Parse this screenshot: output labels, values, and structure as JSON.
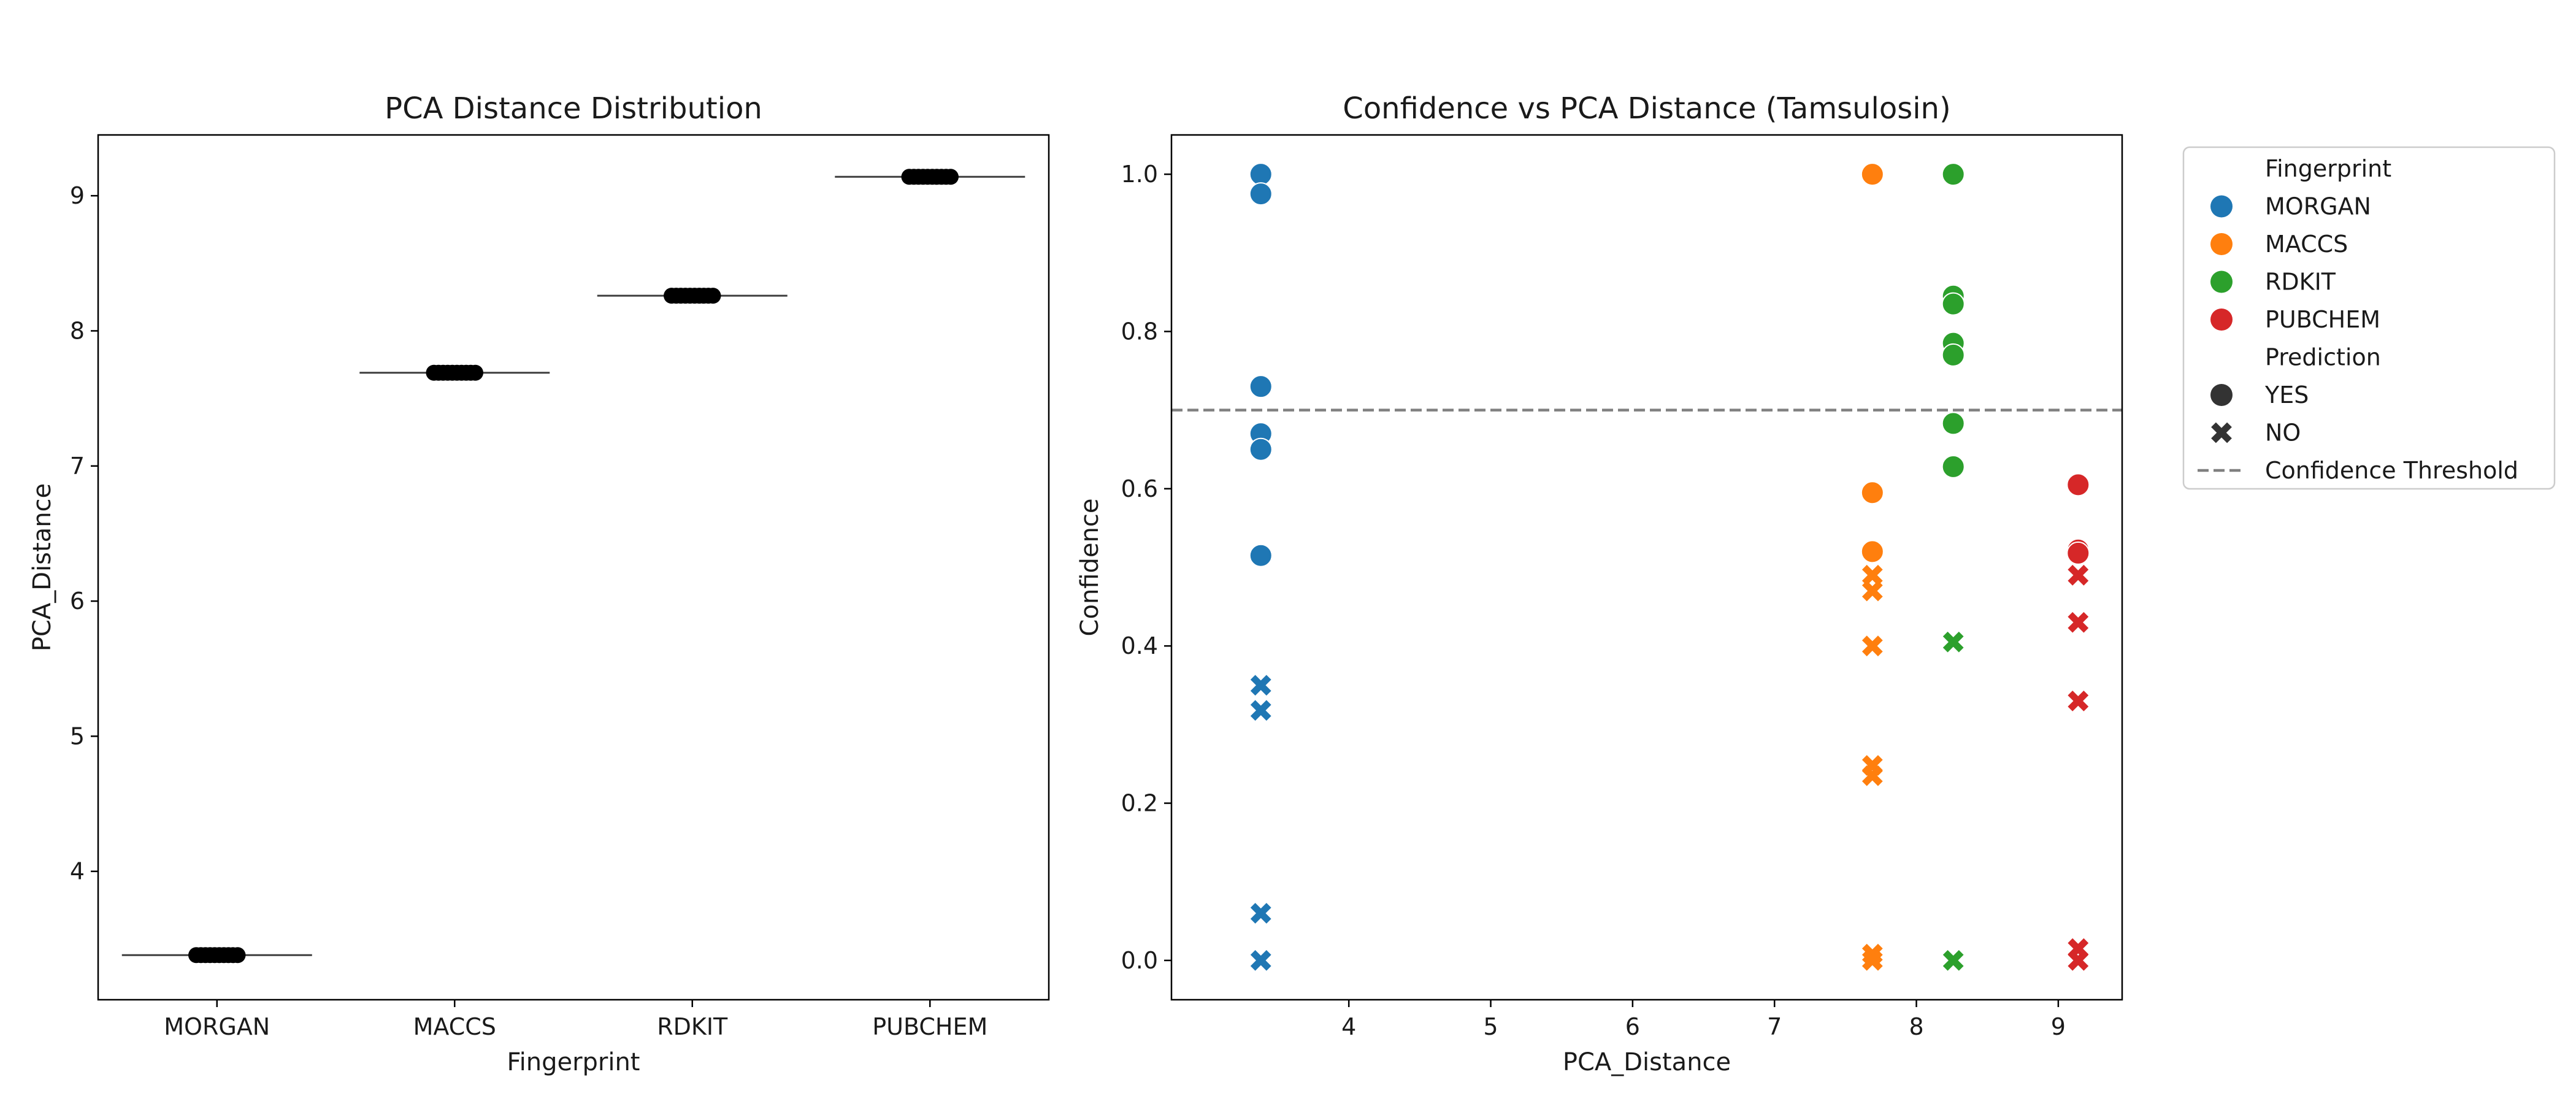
{
  "colors": {
    "MORGAN": "#1f77b4",
    "MACCS": "#ff7f0e",
    "RDKIT": "#2ca02c",
    "PUBCHEM": "#d62728",
    "marker_black": "#000000",
    "threshold": "#808080",
    "legend_marker_gray": "#333333"
  },
  "chart_data": [
    {
      "type": "box",
      "title": "PCA Distance Distribution",
      "xlabel": "Fingerprint",
      "ylabel": "PCA_Distance",
      "categories": [
        "MORGAN",
        "MACCS",
        "RDKIT",
        "PUBCHEM"
      ],
      "ylim": [
        3.05,
        9.45
      ],
      "yticks": [
        4,
        5,
        6,
        7,
        8,
        9
      ],
      "grid": false,
      "medians": [
        3.38,
        7.69,
        8.26,
        9.14
      ],
      "points": [
        [
          3.38,
          3.38,
          3.38,
          3.38,
          3.38,
          3.38,
          3.38,
          3.38,
          3.38,
          3.38
        ],
        [
          7.69,
          7.69,
          7.69,
          7.69,
          7.69,
          7.69,
          7.69,
          7.69,
          7.69,
          7.69
        ],
        [
          8.26,
          8.26,
          8.26,
          8.26,
          8.26,
          8.26,
          8.26,
          8.26,
          8.26,
          8.26
        ],
        [
          9.14,
          9.14,
          9.14,
          9.14,
          9.14,
          9.14,
          9.14,
          9.14,
          9.14,
          9.14
        ]
      ]
    },
    {
      "type": "scatter",
      "title": "Confidence vs PCA Distance (Tamsulosin)",
      "xlabel": "PCA_Distance",
      "ylabel": "Confidence",
      "xlim": [
        2.75,
        9.45
      ],
      "ylim": [
        -0.05,
        1.05
      ],
      "xticks": [
        4,
        5,
        6,
        7,
        8,
        9
      ],
      "yticks": [
        0.0,
        0.2,
        0.4,
        0.6,
        0.8,
        1.0
      ],
      "yticklabels": [
        "0.0",
        "0.2",
        "0.4",
        "0.6",
        "0.8",
        "1.0"
      ],
      "grid": false,
      "threshold": {
        "y": 0.7,
        "label": "Confidence Threshold"
      },
      "series": [
        {
          "name": "MORGAN",
          "x": 3.38,
          "yes": [
            1.0,
            0.975,
            0.73,
            0.67,
            0.65,
            0.515
          ],
          "no": [
            0.35,
            0.318,
            0.06,
            0.0
          ]
        },
        {
          "name": "MACCS",
          "x": 7.69,
          "yes": [
            1.0,
            0.595,
            0.52
          ],
          "no": [
            0.49,
            0.47,
            0.4,
            0.248,
            0.235,
            0.008,
            0.0
          ]
        },
        {
          "name": "RDKIT",
          "x": 8.26,
          "yes": [
            1.0,
            0.845,
            0.835,
            0.785,
            0.77,
            0.683,
            0.628
          ],
          "no": [
            0.405,
            0.0
          ]
        },
        {
          "name": "PUBCHEM",
          "x": 9.14,
          "yes": [
            0.605,
            0.522,
            0.518
          ],
          "no": [
            0.49,
            0.43,
            0.33,
            0.015,
            0.0
          ]
        }
      ]
    }
  ],
  "legend": {
    "placement": "outside-right",
    "fingerprint_title": "Fingerprint",
    "fingerprints": [
      "MORGAN",
      "MACCS",
      "RDKIT",
      "PUBCHEM"
    ],
    "prediction_title": "Prediction",
    "predictions": [
      "YES",
      "NO"
    ],
    "threshold_label": "Confidence Threshold"
  }
}
